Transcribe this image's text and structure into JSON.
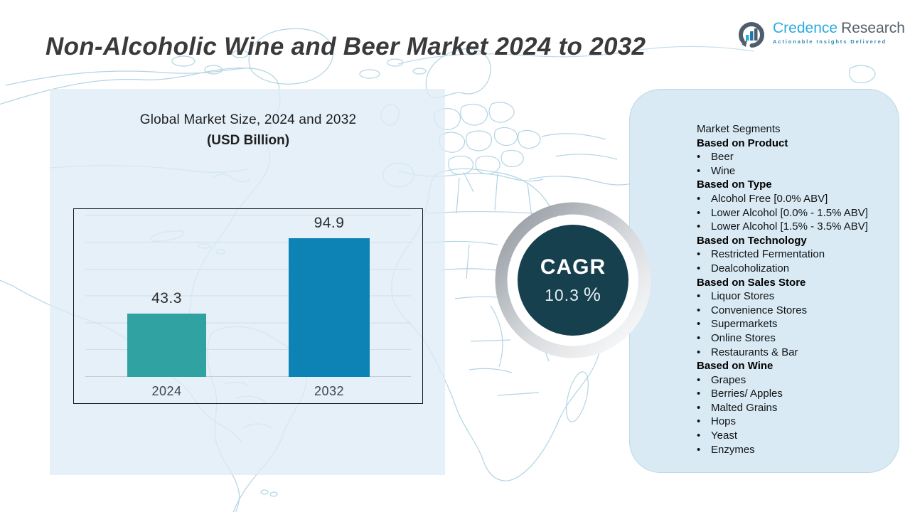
{
  "page": {
    "title": "Non-Alcoholic Wine and Beer Market 2024 to 2032"
  },
  "logo": {
    "brand_primary": "Credence",
    "brand_secondary": "Research",
    "tagline": "Actionable Insights Delivered",
    "icon": "bar-chart-circle-icon",
    "colors": {
      "primary": "#2BAAE1",
      "secondary": "#55606a"
    }
  },
  "chart_data": {
    "type": "bar",
    "title": "Global Market Size, 2024 and 2032",
    "subtitle": "(USD Billion)",
    "categories": [
      "2024",
      "2032"
    ],
    "values": [
      43.3,
      94.9
    ],
    "value_labels": [
      "43.3",
      "94.9"
    ],
    "bar_colors": [
      "#31A2A2",
      "#0D82B4"
    ],
    "ylim": [
      0,
      110
    ],
    "grid": true,
    "legend_position": "none"
  },
  "cagr": {
    "label": "CAGR",
    "value": "10.3",
    "unit": "%",
    "circle_color": "#17404F"
  },
  "segments": {
    "title": "Market Segments",
    "bullet": "•",
    "groups": [
      {
        "heading": "Based on Product",
        "items": [
          "Beer",
          "Wine"
        ]
      },
      {
        "heading": "Based on Type",
        "items": [
          "Alcohol Free [0.0% ABV]",
          "Lower Alcohol [0.0% - 1.5% ABV]",
          "Lower Alcohol [1.5% - 3.5% ABV]"
        ]
      },
      {
        "heading": "Based on Technology",
        "items": [
          "Restricted Fermentation",
          "Dealcoholization"
        ]
      },
      {
        "heading": "Based on Sales Store",
        "items": [
          "Liquor Stores",
          "Convenience Stores",
          "Supermarkets",
          "Online Stores",
          "Restaurants & Bar"
        ]
      },
      {
        "heading": "Based on Wine",
        "items": [
          "Grapes",
          "Berries/ Apples",
          "Malted Grains",
          "Hops",
          "Yeast",
          "Enzymes"
        ]
      }
    ]
  }
}
